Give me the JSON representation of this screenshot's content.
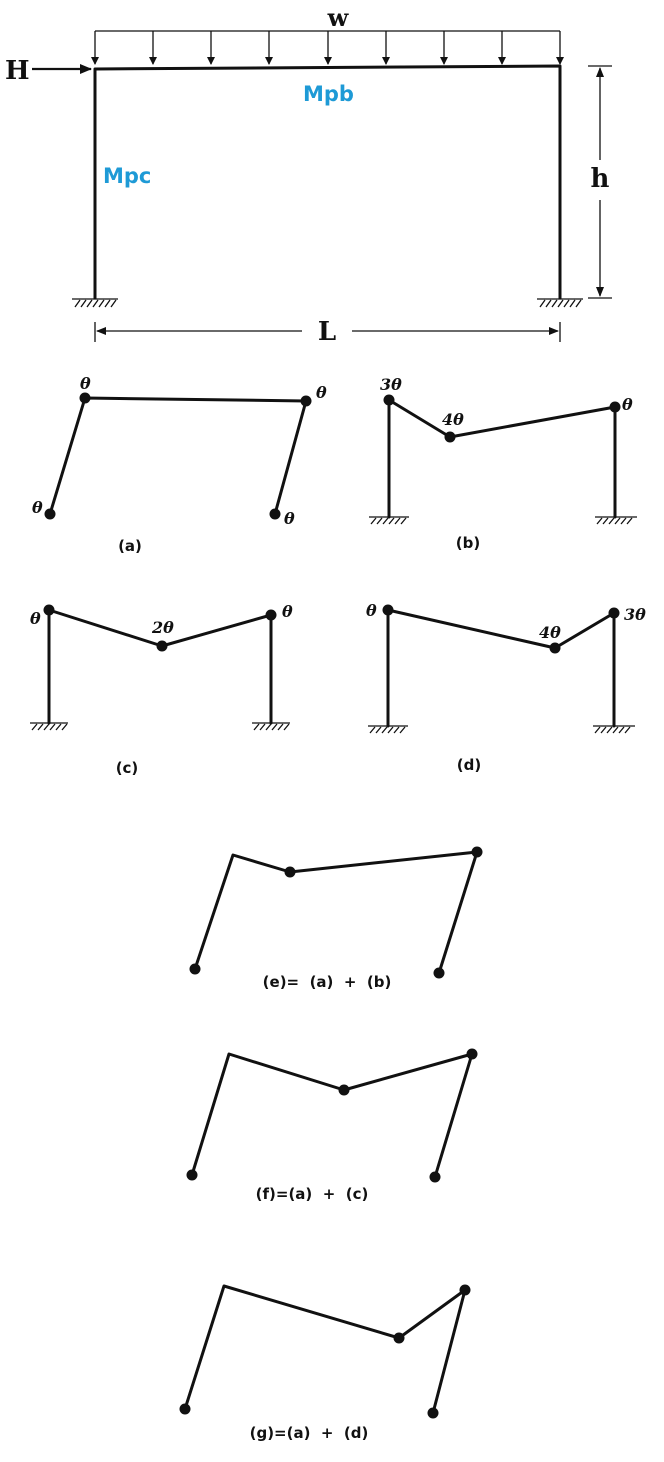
{
  "frame": {
    "load_label": "w",
    "horizontal_load_label": "H",
    "beam_capacity_label": "Mpb",
    "column_capacity_label": "Mpc",
    "height_label": "h",
    "span_label": "L"
  },
  "mechanisms": {
    "a": {
      "caption": "(a)",
      "left_base": "θ",
      "left_top": "θ",
      "right_top": "θ",
      "right_base": "θ"
    },
    "b": {
      "caption": "(b)",
      "left_top": "3θ",
      "mid": "4θ",
      "right_top": "θ"
    },
    "c": {
      "caption": "(c)",
      "left_top": "θ",
      "mid": "2θ",
      "right_top": "θ"
    },
    "d": {
      "caption": "(d)",
      "left_top": "θ",
      "mid": "4θ",
      "right_top": "3θ"
    },
    "e": {
      "caption": "(e)=  (a)  +  (b)"
    },
    "f": {
      "caption": "(f)=(a)  +  (c)"
    },
    "g": {
      "caption": "(g)=(a)  +  (d)"
    }
  },
  "colors": {
    "ink": "#111111",
    "capacity_label": "#1e9ad6"
  }
}
